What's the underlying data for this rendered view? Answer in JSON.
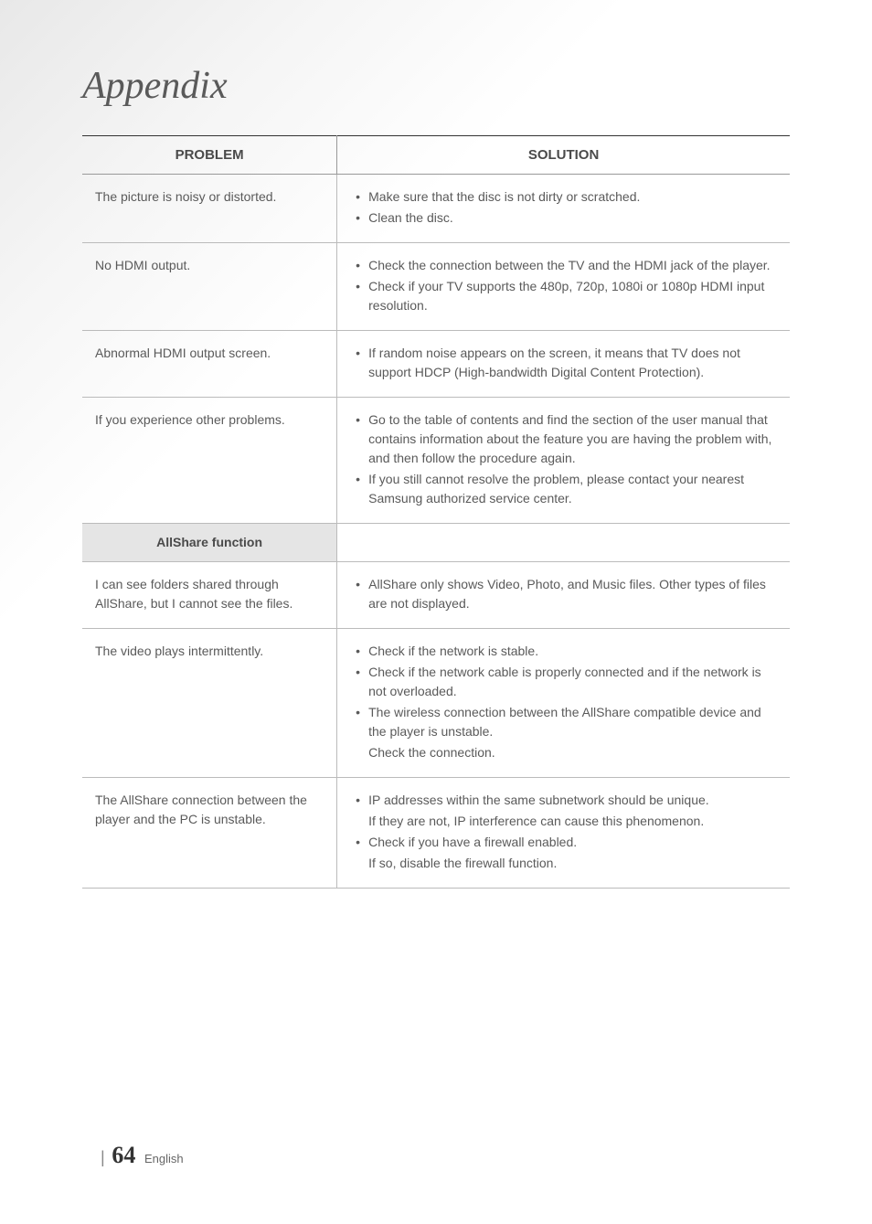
{
  "title": "Appendix",
  "table": {
    "headers": {
      "problem": "PROBLEM",
      "solution": "SOLUTION"
    },
    "rows": [
      {
        "problem": "The picture is noisy or distorted.",
        "solutions": [
          "Make sure that the disc is not dirty or scratched.",
          "Clean the disc."
        ]
      },
      {
        "problem": "No HDMI output.",
        "solutions": [
          "Check the connection between the TV and the HDMI jack of the player.",
          "Check if your TV supports the 480p, 720p, 1080i or 1080p HDMI input resolution."
        ]
      },
      {
        "problem": "Abnormal HDMI output screen.",
        "solutions": [
          "If random noise appears on the screen, it means that TV does not support HDCP (High-bandwidth Digital Content Protection)."
        ]
      },
      {
        "problem": "If you experience other problems.",
        "solutions": [
          "Go to the table of contents and find the section of the user manual that contains information about the feature you are having the problem with, and then follow the procedure again.",
          "If you still cannot resolve the problem, please contact your nearest Samsung authorized service center."
        ]
      }
    ],
    "section_header": "AllShare function",
    "rows2": [
      {
        "problem": "I can see folders shared through AllShare, but I cannot see the files.",
        "solutions": [
          "AllShare only shows Video, Photo, and Music files. Other types of files are not displayed."
        ]
      },
      {
        "problem": "The video plays intermittently.",
        "solutions": [
          "Check if the network is stable.",
          "Check if the network cable is properly connected and if the network is not overloaded.",
          "The wireless connection between the AllShare compatible device and the player is unstable.\nCheck the connection."
        ]
      },
      {
        "problem": "The AllShare connection between the player and the PC is unstable.",
        "solutions": [
          "IP addresses within the same subnetwork should be unique.\nIf they are not, IP interference can cause this phenomenon.",
          "Check if you have a firewall enabled.\nIf so, disable the firewall function."
        ]
      }
    ]
  },
  "footer": {
    "page_number": "64",
    "language": "English"
  }
}
